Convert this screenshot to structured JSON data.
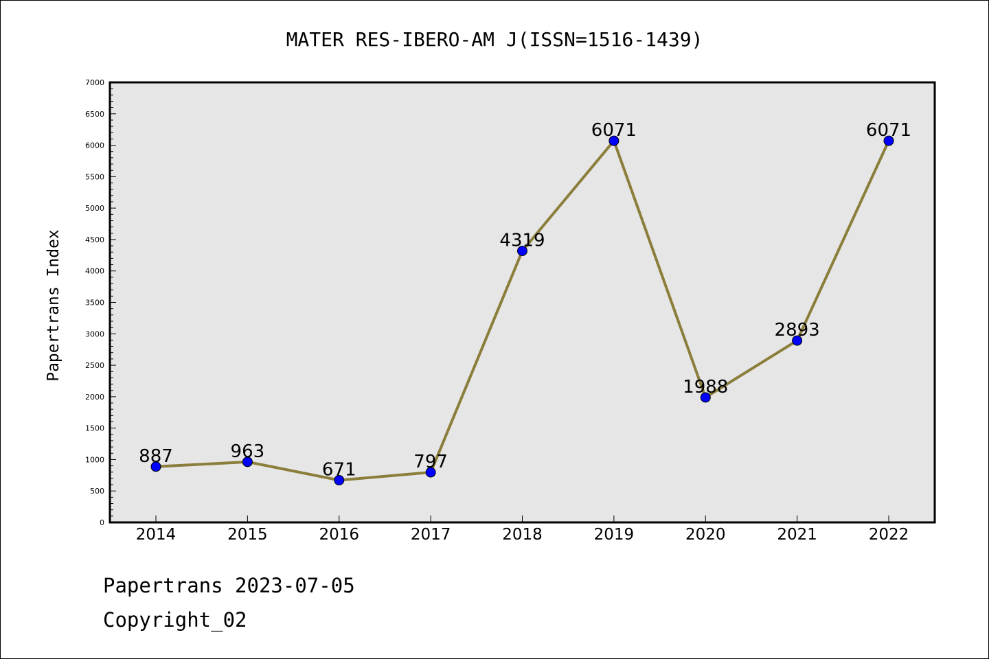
{
  "chart_data": {
    "type": "line",
    "title": "MATER RES-IBERO-AM J(ISSN=1516-1439)",
    "xlabel": "",
    "ylabel": "Papertrans Index",
    "categories": [
      "2014",
      "2015",
      "2016",
      "2017",
      "2018",
      "2019",
      "2020",
      "2021",
      "2022"
    ],
    "values": [
      887,
      963,
      671,
      797,
      4319,
      6071,
      1988,
      2893,
      6071
    ],
    "ylim": [
      0,
      7000
    ],
    "yticks": [
      0,
      500,
      1000,
      1500,
      2000,
      2500,
      3000,
      3500,
      4000,
      4500,
      5000,
      5500,
      6000,
      6500,
      7000
    ],
    "grid": false,
    "legend": "none",
    "colors": {
      "line": "#8B7D3A",
      "marker": "#0000FF",
      "plot_background": "#E6E6E6"
    }
  },
  "footer": {
    "line1": "Papertrans 2023-07-05",
    "line2": "Copyright_02"
  }
}
